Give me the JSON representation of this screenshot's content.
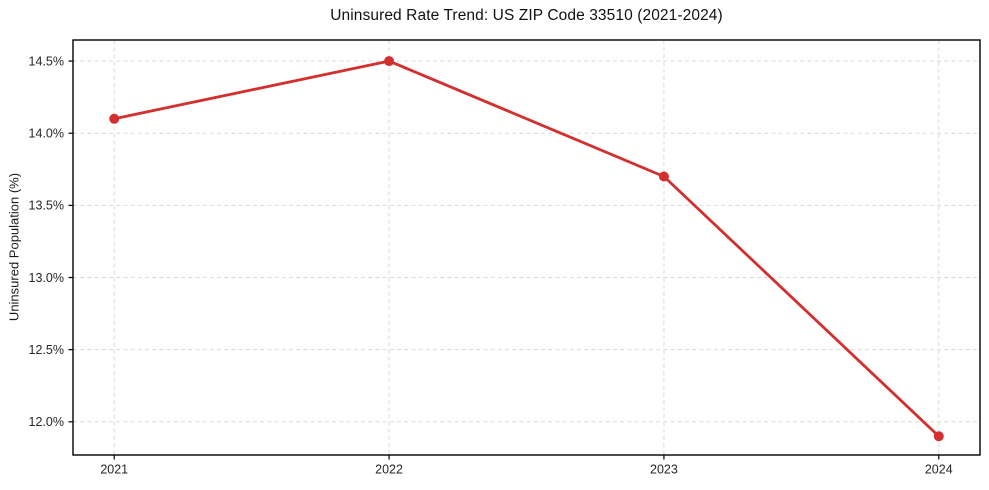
{
  "chart_data": {
    "type": "line",
    "title": "Uninsured Rate Trend: US ZIP Code 33510 (2021-2024)",
    "xlabel": "",
    "ylabel": "Uninsured Population (%)",
    "categories": [
      2021,
      2022,
      2023,
      2024
    ],
    "x_tick_labels": [
      "2021",
      "2022",
      "2023",
      "2024"
    ],
    "series": [
      {
        "name": "Uninsured rate",
        "values": [
          14.1,
          14.5,
          13.7,
          11.9
        ]
      }
    ],
    "yticks": [
      12.0,
      12.5,
      13.0,
      13.5,
      14.0,
      14.5
    ],
    "ytick_labels": [
      "12.0%",
      "12.5%",
      "13.0%",
      "13.5%",
      "14.0%",
      "14.5%"
    ],
    "ylim": [
      11.77,
      14.646
    ],
    "xlim": [
      2020.85,
      2024.15
    ],
    "grid": true,
    "grid_style": "dashed",
    "legend": "none",
    "colors": {
      "line": "#d42f2f",
      "marker": "#d42f2f",
      "grid": "#d9d9d9",
      "spine": "#000000",
      "background": "#ffffff"
    }
  }
}
